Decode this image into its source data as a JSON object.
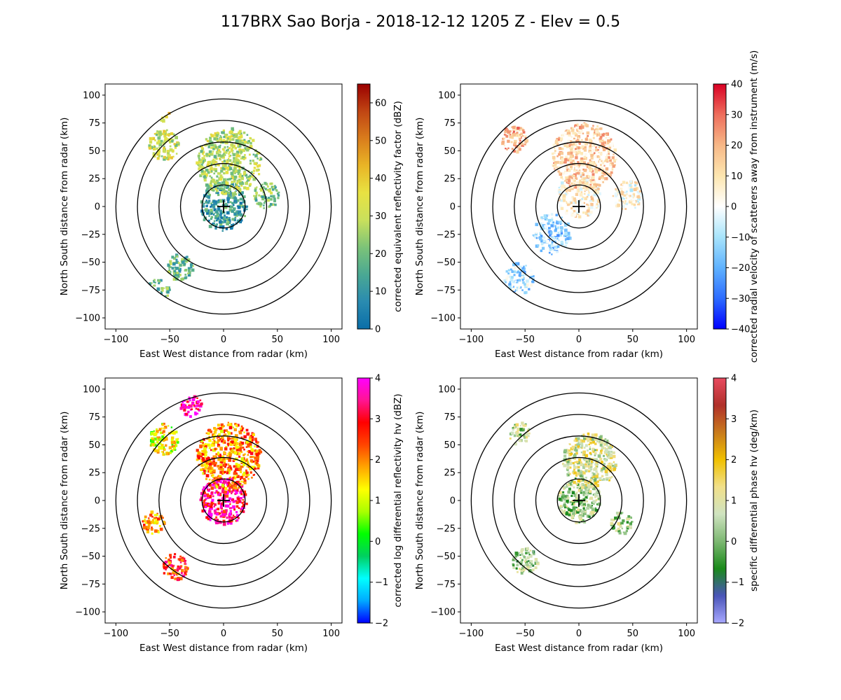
{
  "figure": {
    "title": "117BRX Sao Borja - 2018-12-12 1205 Z -  Elev = 0.5"
  },
  "chart_data": [
    {
      "type": "heatmap",
      "field": "reflectivity",
      "xlabel": "East West distance from radar (km)",
      "ylabel": "North South distance from radar (km)",
      "xlim": [
        -110,
        110
      ],
      "ylim": [
        -110,
        110
      ],
      "xticks": [
        -100,
        -50,
        0,
        50,
        100
      ],
      "yticks": [
        -100,
        -75,
        -50,
        -25,
        0,
        25,
        50,
        75,
        100
      ],
      "range_rings_km": [
        20,
        40,
        60,
        80,
        100
      ],
      "radar_location": [
        0,
        0
      ],
      "colorbar": {
        "label": "corrected equivalent reflectivity factor (dBZ)",
        "min": 0,
        "max": 65,
        "ticks": [
          0,
          10,
          20,
          30,
          40,
          50,
          60
        ],
        "colors": [
          "#0a6ea8",
          "#2a8bb0",
          "#4aa893",
          "#7cc378",
          "#c9e05c",
          "#e8e242",
          "#e9b526",
          "#d97c1c",
          "#c04513",
          "#9a0000"
        ]
      },
      "echoes": [
        {
          "center": [
            0,
            0
          ],
          "radius": 22,
          "value": 12
        },
        {
          "center": [
            5,
            40
          ],
          "radius": 30,
          "value": 28
        },
        {
          "center": [
            -55,
            55
          ],
          "radius": 14,
          "value": 30
        },
        {
          "center": [
            -40,
            -55
          ],
          "radius": 12,
          "value": 18
        },
        {
          "center": [
            -60,
            -75
          ],
          "radius": 10,
          "value": 20
        },
        {
          "center": [
            -60,
            85
          ],
          "radius": 10,
          "value": 35
        },
        {
          "center": [
            40,
            10
          ],
          "radius": 12,
          "value": 22
        }
      ]
    },
    {
      "type": "heatmap",
      "field": "velocity",
      "xlabel": "East West distance from radar (km)",
      "ylabel": "North South distance from radar (km)",
      "xlim": [
        -110,
        110
      ],
      "ylim": [
        -110,
        110
      ],
      "xticks": [
        -100,
        -50,
        0,
        50,
        100
      ],
      "yticks": [
        -100,
        -75,
        -50,
        -25,
        0,
        25,
        50,
        75,
        100
      ],
      "range_rings_km": [
        20,
        40,
        60,
        80,
        100
      ],
      "radar_location": [
        0,
        0
      ],
      "colorbar": {
        "label": "corrected radial velocity of scatterers away from instrument (m/s)",
        "min": -40,
        "max": 40,
        "ticks": [
          -40,
          -30,
          -20,
          -10,
          0,
          10,
          20,
          30,
          40
        ],
        "colors": [
          "#0000ff",
          "#2d6cff",
          "#5fb2ff",
          "#a8e4fb",
          "#ffffff",
          "#fde6b0",
          "#f7b887",
          "#ee6e5c",
          "#d90024"
        ]
      },
      "echoes": [
        {
          "center": [
            0,
            10
          ],
          "radius": 20,
          "value": 6
        },
        {
          "center": [
            5,
            45
          ],
          "radius": 30,
          "value": 14
        },
        {
          "center": [
            -25,
            -25
          ],
          "radius": 18,
          "value": -12
        },
        {
          "center": [
            -55,
            -65
          ],
          "radius": 14,
          "value": -10
        },
        {
          "center": [
            -60,
            60
          ],
          "radius": 12,
          "value": 18
        },
        {
          "center": [
            45,
            10
          ],
          "radius": 14,
          "value": 4
        }
      ]
    },
    {
      "type": "heatmap",
      "field": "differential_reflectivity",
      "xlabel": "East West distance from radar (km)",
      "ylabel": "North South distance from radar (km)",
      "xlim": [
        -110,
        110
      ],
      "ylim": [
        -110,
        110
      ],
      "xticks": [
        -100,
        -50,
        0,
        50,
        100
      ],
      "yticks": [
        -100,
        -75,
        -50,
        -25,
        0,
        25,
        50,
        75,
        100
      ],
      "range_rings_km": [
        20,
        40,
        60,
        80,
        100
      ],
      "radar_location": [
        0,
        0
      ],
      "colorbar": {
        "label": "corrected log differential reflectivity hv (dBZ)",
        "min": -2,
        "max": 4,
        "ticks": [
          -2,
          -1,
          0,
          1,
          2,
          3,
          4
        ],
        "colors": [
          "#0000ff",
          "#00aaff",
          "#00ffff",
          "#00d060",
          "#00ff00",
          "#aaff00",
          "#ffff00",
          "#ffa500",
          "#ff4500",
          "#ff0000",
          "#ff1493",
          "#ff00ff"
        ]
      },
      "echoes": [
        {
          "center": [
            0,
            0
          ],
          "radius": 22,
          "value": 3.3
        },
        {
          "center": [
            5,
            40
          ],
          "radius": 30,
          "value": 2.0
        },
        {
          "center": [
            -55,
            55
          ],
          "radius": 14,
          "value": 1.2
        },
        {
          "center": [
            -45,
            -60
          ],
          "radius": 12,
          "value": 2.6
        },
        {
          "center": [
            -65,
            -20
          ],
          "radius": 10,
          "value": 1.8
        },
        {
          "center": [
            -30,
            85
          ],
          "radius": 10,
          "value": 3.6
        }
      ]
    },
    {
      "type": "heatmap",
      "field": "specific_differential_phase",
      "xlabel": "East West distance from radar (km)",
      "ylabel": "North South distance from radar (km)",
      "xlim": [
        -110,
        110
      ],
      "ylim": [
        -110,
        110
      ],
      "xticks": [
        -100,
        -50,
        0,
        50,
        100
      ],
      "yticks": [
        -100,
        -75,
        -50,
        -25,
        0,
        25,
        50,
        75,
        100
      ],
      "range_rings_km": [
        20,
        40,
        60,
        80,
        100
      ],
      "radar_location": [
        0,
        0
      ],
      "colorbar": {
        "label": "specific differential phase hv (deg/km)",
        "min": -2,
        "max": 4,
        "ticks": [
          -2,
          -1,
          0,
          1,
          2,
          3,
          4
        ],
        "colors": [
          "#a8a8ff",
          "#4a55b8",
          "#1a8a1a",
          "#7db872",
          "#cfe3c0",
          "#f1e08a",
          "#f0c000",
          "#c87a1c",
          "#b0302a",
          "#e84a5f"
        ]
      },
      "echoes": [
        {
          "center": [
            0,
            0
          ],
          "radius": 20,
          "value": 0.3
        },
        {
          "center": [
            10,
            35
          ],
          "radius": 25,
          "value": 0.9
        },
        {
          "center": [
            -50,
            -55
          ],
          "radius": 12,
          "value": 0.2
        },
        {
          "center": [
            -55,
            60
          ],
          "radius": 10,
          "value": 0.5
        },
        {
          "center": [
            40,
            -20
          ],
          "radius": 10,
          "value": 0.4
        }
      ]
    }
  ]
}
